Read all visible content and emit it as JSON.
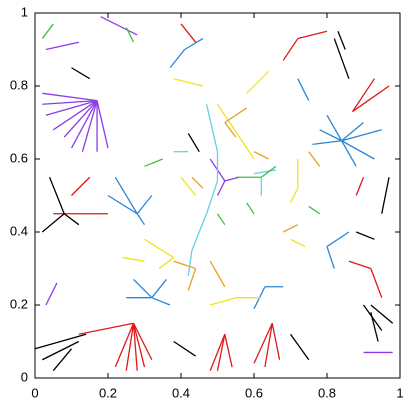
{
  "chart_data": {
    "type": "segments",
    "xlim": [
      0,
      1
    ],
    "ylim": [
      0,
      1
    ],
    "xticks": [
      0,
      0.2,
      0.4,
      0.6,
      0.8,
      1
    ],
    "yticks": [
      0,
      0.2,
      0.4,
      0.6,
      0.8,
      1
    ],
    "series": [
      {
        "color": "#8a3ce6",
        "x": [
          0.17,
          0.02,
          null,
          0.17,
          0.03,
          null,
          0.17,
          0.05,
          null,
          0.17,
          0.08,
          null,
          0.17,
          0.1,
          null,
          0.17,
          0.13,
          null,
          0.17,
          0.17,
          null,
          0.17,
          0.2,
          null,
          0.17,
          0.02,
          null,
          0.03,
          0.12,
          null,
          0.18,
          0.28,
          null,
          0.52,
          0.48,
          null,
          0.52,
          0.5,
          null,
          0.52,
          0.56,
          null,
          0.9,
          0.98,
          null,
          0.03,
          0.06
        ],
        "y": [
          0.76,
          0.78,
          null,
          0.76,
          0.72,
          null,
          0.76,
          0.68,
          null,
          0.76,
          0.66,
          null,
          0.76,
          0.63,
          null,
          0.76,
          0.62,
          null,
          0.76,
          0.62,
          null,
          0.76,
          0.63,
          null,
          0.76,
          0.75,
          null,
          0.9,
          0.92,
          null,
          0.99,
          0.94,
          null,
          0.54,
          0.6,
          null,
          0.54,
          0.5,
          null,
          0.54,
          0.55,
          null,
          0.07,
          0.07,
          null,
          0.2,
          0.26
        ]
      },
      {
        "color": "#2a86d8",
        "x": [
          0.84,
          0.76,
          null,
          0.84,
          0.78,
          null,
          0.84,
          0.8,
          null,
          0.84,
          0.9,
          null,
          0.84,
          0.95,
          null,
          0.84,
          0.93,
          null,
          0.84,
          0.88,
          null,
          0.28,
          0.2,
          null,
          0.28,
          0.22,
          null,
          0.28,
          0.32,
          null,
          0.28,
          0.3,
          null,
          0.32,
          0.25,
          null,
          0.32,
          0.27,
          null,
          0.32,
          0.36,
          null,
          0.32,
          0.37,
          null,
          0.63,
          0.6,
          null,
          0.63,
          0.68,
          null,
          0.8,
          0.86,
          null,
          0.8,
          0.82,
          null,
          0.41,
          0.37,
          null,
          0.41,
          0.46,
          null,
          0.72,
          0.75
        ],
        "y": [
          0.65,
          0.64,
          null,
          0.65,
          0.68,
          null,
          0.65,
          0.72,
          null,
          0.65,
          0.7,
          null,
          0.65,
          0.68,
          null,
          0.65,
          0.6,
          null,
          0.65,
          0.58,
          null,
          0.45,
          0.5,
          null,
          0.45,
          0.55,
          null,
          0.45,
          0.5,
          null,
          0.45,
          0.42,
          null,
          0.22,
          0.22,
          null,
          0.22,
          0.27,
          null,
          0.22,
          0.27,
          null,
          0.22,
          0.2,
          null,
          0.25,
          0.19,
          null,
          0.25,
          0.25,
          null,
          0.36,
          0.4,
          null,
          0.36,
          0.3,
          null,
          0.9,
          0.85,
          null,
          0.9,
          0.93,
          null,
          0.82,
          0.76
        ]
      },
      {
        "color": "#e01818",
        "x": [
          0.27,
          0.22,
          null,
          0.27,
          0.25,
          null,
          0.27,
          0.28,
          null,
          0.27,
          0.3,
          null,
          0.27,
          0.32,
          null,
          0.27,
          0.12,
          null,
          0.65,
          0.6,
          null,
          0.65,
          0.63,
          null,
          0.65,
          0.67,
          null,
          0.52,
          0.48,
          null,
          0.52,
          0.5,
          null,
          0.52,
          0.54,
          null,
          0.05,
          0.2,
          null,
          0.1,
          0.15,
          null,
          0.87,
          0.97,
          null,
          0.87,
          0.93,
          null,
          0.72,
          0.8,
          null,
          0.72,
          0.68,
          null,
          0.92,
          0.86,
          null,
          0.92,
          0.95,
          null,
          0.44,
          0.4,
          null,
          0.9,
          0.88
        ],
        "y": [
          0.15,
          0.03,
          null,
          0.15,
          0.02,
          null,
          0.15,
          0.02,
          null,
          0.15,
          0.03,
          null,
          0.15,
          0.05,
          null,
          0.15,
          0.12,
          null,
          0.15,
          0.04,
          null,
          0.15,
          0.03,
          null,
          0.15,
          0.05,
          null,
          0.12,
          0.02,
          null,
          0.12,
          0.02,
          null,
          0.12,
          0.03,
          null,
          0.45,
          0.45,
          null,
          0.5,
          0.55,
          null,
          0.73,
          0.8,
          null,
          0.73,
          0.82,
          null,
          0.93,
          0.95,
          null,
          0.93,
          0.87,
          null,
          0.3,
          0.32,
          null,
          0.3,
          0.22,
          null,
          0.92,
          0.97,
          null,
          0.55,
          0.5
        ]
      },
      {
        "color": "#000000",
        "x": [
          0.0,
          0.14,
          null,
          0.02,
          0.12,
          null,
          0.05,
          0.1,
          null,
          0.9,
          0.95,
          null,
          0.92,
          0.98,
          null,
          0.92,
          0.94,
          null,
          0.04,
          0.08,
          null,
          0.02,
          0.08,
          null,
          0.08,
          0.12,
          null,
          0.82,
          0.86,
          null,
          0.83,
          0.85,
          null,
          0.95,
          0.97,
          null,
          0.1,
          0.15,
          null,
          0.38,
          0.44,
          null,
          0.7,
          0.75,
          null,
          0.45,
          0.42,
          null,
          0.88,
          0.93
        ],
        "y": [
          0.08,
          0.12,
          null,
          0.05,
          0.1,
          null,
          0.02,
          0.08,
          null,
          0.2,
          0.13,
          null,
          0.2,
          0.15,
          null,
          0.18,
          0.1,
          null,
          0.55,
          0.45,
          null,
          0.4,
          0.45,
          null,
          0.45,
          0.42,
          null,
          0.93,
          0.82,
          null,
          0.95,
          0.9,
          null,
          0.45,
          0.55,
          null,
          0.85,
          0.82,
          null,
          0.1,
          0.06,
          null,
          0.12,
          0.05,
          null,
          0.62,
          0.67,
          null,
          0.4,
          0.38
        ]
      },
      {
        "color": "#f2e21c",
        "x": [
          0.5,
          0.56,
          null,
          0.56,
          0.6,
          null,
          0.64,
          0.58,
          null,
          0.72,
          0.72,
          null,
          0.72,
          0.7,
          null,
          0.3,
          0.38,
          null,
          0.38,
          0.34,
          null,
          0.48,
          0.55,
          null,
          0.55,
          0.62,
          null,
          0.7,
          0.74,
          null,
          0.4,
          0.44,
          null,
          0.24,
          0.3,
          null,
          0.38,
          0.46
        ],
        "y": [
          0.75,
          0.66,
          null,
          0.66,
          0.6,
          null,
          0.84,
          0.78,
          null,
          0.6,
          0.52,
          null,
          0.52,
          0.48,
          null,
          0.38,
          0.33,
          null,
          0.33,
          0.3,
          null,
          0.2,
          0.22,
          null,
          0.22,
          0.22,
          null,
          0.38,
          0.36,
          null,
          0.55,
          0.5,
          null,
          0.33,
          0.32,
          null,
          0.82,
          0.8
        ]
      },
      {
        "color": "#e3a21e",
        "x": [
          0.52,
          0.58,
          null,
          0.52,
          0.55,
          null,
          0.44,
          0.38,
          null,
          0.44,
          0.42,
          null,
          0.48,
          0.52,
          null,
          0.75,
          0.78,
          null,
          0.68,
          0.72,
          null,
          0.43,
          0.46,
          null,
          0.6,
          0.64
        ],
        "y": [
          0.7,
          0.74,
          null,
          0.7,
          0.66,
          null,
          0.3,
          0.32,
          null,
          0.3,
          0.24,
          null,
          0.32,
          0.25,
          null,
          0.62,
          0.58,
          null,
          0.4,
          0.42,
          null,
          0.55,
          0.52,
          null,
          0.62,
          0.6
        ]
      },
      {
        "color": "#62d2e2",
        "x": [
          0.5,
          0.47,
          null,
          0.47,
          0.43,
          null,
          0.43,
          0.42,
          null,
          0.5,
          0.5,
          null,
          0.5,
          0.47,
          null,
          0.42,
          0.38,
          null,
          0.6,
          0.66,
          null,
          0.62,
          0.62
        ],
        "y": [
          0.54,
          0.45,
          null,
          0.45,
          0.35,
          null,
          0.35,
          0.28,
          null,
          0.54,
          0.62,
          null,
          0.62,
          0.75,
          null,
          0.62,
          0.62,
          null,
          0.56,
          0.57,
          null,
          0.55,
          0.5
        ]
      },
      {
        "color": "#3cc23c",
        "x": [
          0.55,
          0.62,
          null,
          0.62,
          0.66,
          null,
          0.05,
          0.02,
          null,
          0.25,
          0.27,
          null,
          0.5,
          0.52,
          null,
          0.35,
          0.3,
          null,
          0.78,
          0.75,
          null,
          0.6,
          0.58
        ],
        "y": [
          0.55,
          0.55,
          null,
          0.55,
          0.58,
          null,
          0.97,
          0.93,
          null,
          0.96,
          0.92,
          null,
          0.45,
          0.42,
          null,
          0.6,
          0.58,
          null,
          0.45,
          0.47,
          null,
          0.45,
          0.48
        ]
      }
    ]
  }
}
